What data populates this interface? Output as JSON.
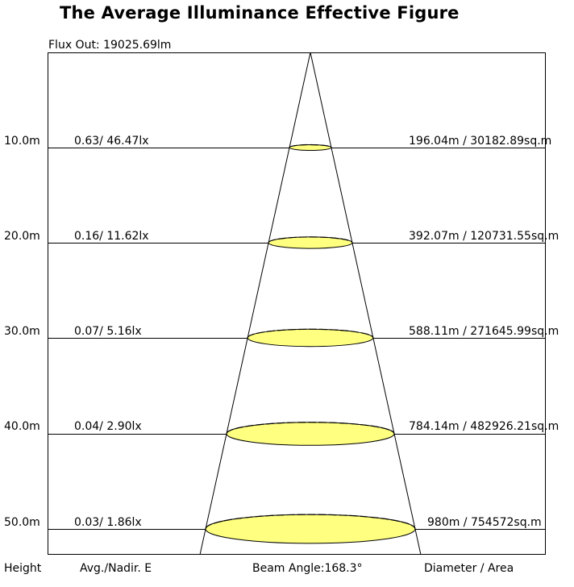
{
  "title": "The Average Illuminance Effective Figure",
  "flux_out": "Flux Out: 19025.69lm",
  "rows": [
    {
      "height": "10.0m",
      "illuminance": "0.63/ 46.47lx",
      "diameter_area": "196.04m / 30182.89sq.m"
    },
    {
      "height": "20.0m",
      "illuminance": "0.16/ 11.62lx",
      "diameter_area": "392.07m / 120731.55sq.m"
    },
    {
      "height": "30.0m",
      "illuminance": "0.07/ 5.16lx",
      "diameter_area": "588.11m / 271645.99sq.m"
    },
    {
      "height": "40.0m",
      "illuminance": "0.04/ 2.90lx",
      "diameter_area": "784.14m / 482926.21sq.m"
    },
    {
      "height": "50.0m",
      "illuminance": "0.03/ 1.86lx",
      "diameter_area": "980m / 754572sq.m"
    }
  ],
  "footer": {
    "height_label": "Height",
    "illuminance_label": "Avg./Nadir. E",
    "beam_angle": "Beam Angle:168.3°",
    "diameter_label": "Diameter / Area"
  },
  "colors": {
    "ellipse_fill": "#ffff80",
    "line": "#000000"
  }
}
